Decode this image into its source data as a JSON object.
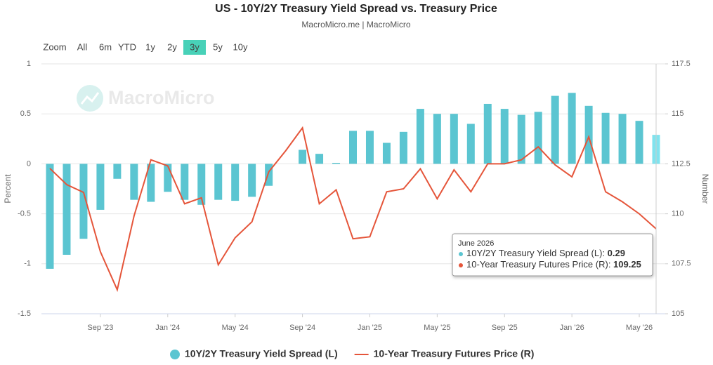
{
  "chart_data": {
    "type": "bar-line",
    "title": "US - 10Y/2Y Treasury Yield Spread vs. Treasury Price",
    "subtitle": "MacroMicro.me | MacroMicro",
    "watermark": "MacroMicro",
    "zoom_label": "Zoom",
    "zoom_buttons": [
      "All",
      "6m",
      "YTD",
      "1y",
      "2y",
      "3y",
      "5y",
      "10y"
    ],
    "zoom_selected": 5,
    "ylabel": "Percent",
    "y2label": "Number",
    "categories": [
      null,
      null,
      null,
      "Sep '23",
      null,
      null,
      null,
      "Jan '24",
      null,
      null,
      null,
      "May '24",
      null,
      null,
      null,
      "Sep '24",
      null,
      null,
      null,
      "Jan '25",
      null,
      null,
      null,
      "May '25",
      null,
      null,
      null,
      "Sep '25",
      null,
      null,
      null,
      "Jan '26",
      null,
      null,
      null,
      "May '26",
      null
    ],
    "ylim": [
      -1.5,
      1
    ],
    "yticks": [
      1,
      0.5,
      0,
      -0.5,
      -1,
      -1.5
    ],
    "y2lim": [
      105,
      117.5
    ],
    "y2ticks": [
      117.5,
      115,
      112.5,
      110,
      107.5,
      105
    ],
    "grid": true,
    "series": [
      {
        "name": "10Y/2Y Treasury Yield Spread (L)",
        "type": "bar",
        "color": "#5bc5d1",
        "highlight_color": "#80e3ee",
        "values": [
          -1.05,
          -0.91,
          -0.75,
          -0.46,
          -0.15,
          -0.36,
          -0.38,
          -0.28,
          -0.36,
          -0.41,
          -0.36,
          -0.37,
          -0.33,
          -0.22,
          null,
          0.14,
          0.1,
          0.01,
          0.33,
          0.33,
          0.21,
          0.32,
          0.55,
          0.5,
          0.5,
          0.4,
          0.6,
          0.55,
          0.49,
          0.52,
          0.68,
          0.71,
          0.58,
          0.51,
          0.5,
          0.43,
          0.29
        ]
      },
      {
        "name": "10-Year Treasury Futures Price (R)",
        "type": "line",
        "axis": "y2",
        "color": "#e5553a",
        "values": [
          112.27,
          111.46,
          111.07,
          108.1,
          106.2,
          109.9,
          112.7,
          112.4,
          110.5,
          110.8,
          107.45,
          108.8,
          109.6,
          112.1,
          113.15,
          114.3,
          110.5,
          111.2,
          108.75,
          108.85,
          111.1,
          111.25,
          112.25,
          110.75,
          112.2,
          111.1,
          112.5,
          112.5,
          112.7,
          113.35,
          112.45,
          111.85,
          113.85,
          111.1,
          110.6,
          110.0,
          109.25
        ]
      }
    ],
    "tooltip": {
      "title": "June 2026",
      "index": 36
    }
  }
}
